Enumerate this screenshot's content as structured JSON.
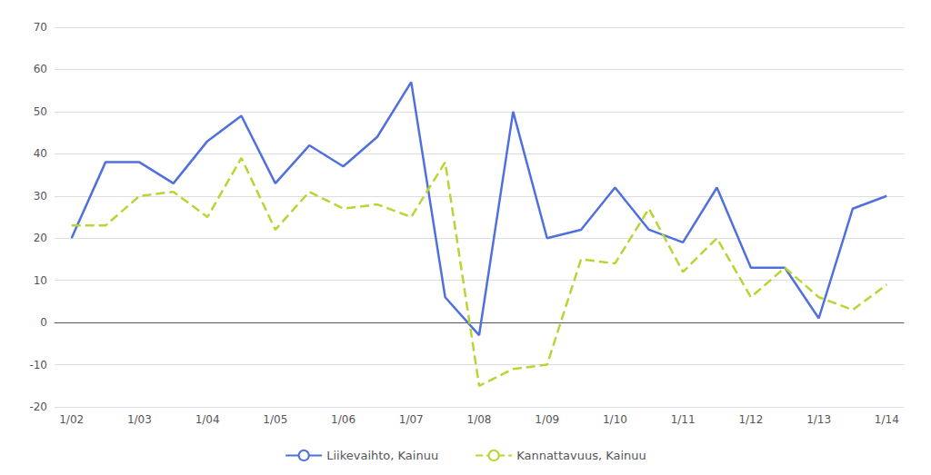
{
  "chart_data": {
    "type": "line",
    "categories": [
      "1/02",
      null,
      "1/03",
      null,
      "1/04",
      null,
      "1/05",
      null,
      "1/06",
      null,
      "1/07",
      null,
      "1/08",
      null,
      "1/09",
      null,
      "1/10",
      null,
      "1/11",
      null,
      "1/12",
      null,
      "1/13",
      null,
      "1/14"
    ],
    "series": [
      {
        "name": "Liikevaihto, Kainuu",
        "line_style": "solid",
        "values": [
          20,
          38,
          38,
          33,
          43,
          49,
          33,
          42,
          37,
          44,
          57,
          6,
          -3,
          50,
          20,
          22,
          32,
          22,
          19,
          32,
          13,
          13,
          1,
          27,
          30
        ]
      },
      {
        "name": "Kannattavuus, Kainuu",
        "line_style": "dashed",
        "values": [
          23,
          23,
          30,
          31,
          25,
          39,
          22,
          31,
          27,
          28,
          25,
          38,
          -15,
          -11,
          -10,
          15,
          14,
          27,
          12,
          20,
          6,
          13,
          6,
          3,
          9
        ]
      }
    ],
    "ylim": [
      -20,
      70
    ],
    "yticks": [
      -20,
      -10,
      0,
      10,
      20,
      30,
      40,
      50,
      60,
      70
    ],
    "grid": true,
    "legend": "bottom"
  }
}
